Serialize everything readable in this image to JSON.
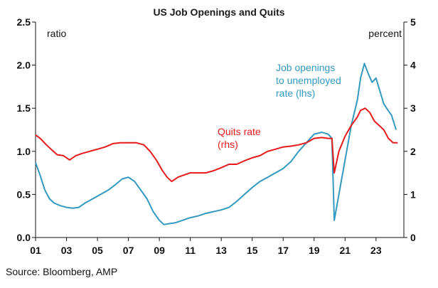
{
  "chart_data": {
    "type": "line",
    "title": "US Job Openings and Quits",
    "left_axis_unit": "ratio",
    "right_axis_unit": "percent",
    "x_ticks": [
      "01",
      "03",
      "05",
      "07",
      "09",
      "11",
      "13",
      "15",
      "17",
      "19",
      "21",
      "23"
    ],
    "y_left_ticks": [
      "0.0",
      "0.5",
      "1.0",
      "1.5",
      "2.0",
      "2.5"
    ],
    "y_right_ticks": [
      "0",
      "1",
      "2",
      "3",
      "4",
      "5"
    ],
    "y_left_range": [
      0,
      2.5
    ],
    "y_right_range": [
      0,
      5
    ],
    "x_range": [
      2001.0,
      2024.8
    ],
    "grid": false,
    "series": [
      {
        "name": "Job openings to unemployed rate (lhs)",
        "axis": "left",
        "color": "#3399bf",
        "x": [
          2001.0,
          2001.3,
          2001.6,
          2001.9,
          2002.2,
          2002.6,
          2003.0,
          2003.4,
          2003.8,
          2004.2,
          2004.7,
          2005.2,
          2005.7,
          2006.2,
          2006.6,
          2007.0,
          2007.4,
          2007.8,
          2008.2,
          2008.6,
          2009.0,
          2009.3,
          2009.6,
          2010.0,
          2010.5,
          2011.0,
          2011.5,
          2012.0,
          2012.5,
          2013.0,
          2013.5,
          2014.0,
          2014.5,
          2015.0,
          2015.5,
          2016.0,
          2016.5,
          2017.0,
          2017.5,
          2018.0,
          2018.5,
          2019.0,
          2019.5,
          2019.9,
          2020.15,
          2020.3,
          2020.6,
          2021.0,
          2021.4,
          2021.8,
          2022.0,
          2022.25,
          2022.5,
          2022.75,
          2023.0,
          2023.25,
          2023.5,
          2023.8,
          2024.0,
          2024.3
        ],
        "values": [
          0.87,
          0.72,
          0.55,
          0.45,
          0.4,
          0.37,
          0.35,
          0.34,
          0.35,
          0.4,
          0.45,
          0.5,
          0.55,
          0.62,
          0.68,
          0.7,
          0.65,
          0.55,
          0.45,
          0.3,
          0.2,
          0.15,
          0.16,
          0.17,
          0.2,
          0.23,
          0.25,
          0.28,
          0.3,
          0.32,
          0.35,
          0.42,
          0.5,
          0.58,
          0.65,
          0.7,
          0.75,
          0.8,
          0.88,
          1.0,
          1.1,
          1.2,
          1.22,
          1.2,
          1.15,
          0.2,
          0.5,
          0.9,
          1.3,
          1.6,
          1.85,
          2.02,
          1.9,
          1.8,
          1.85,
          1.7,
          1.55,
          1.47,
          1.42,
          1.25
        ]
      },
      {
        "name": "Quits rate (rhs)",
        "axis": "right",
        "color": "#e8191b",
        "x": [
          2001.0,
          2001.3,
          2001.7,
          2002.0,
          2002.4,
          2002.8,
          2003.2,
          2003.6,
          2004.0,
          2004.5,
          2005.0,
          2005.5,
          2006.0,
          2006.5,
          2007.0,
          2007.5,
          2008.0,
          2008.4,
          2008.8,
          2009.2,
          2009.5,
          2009.8,
          2010.2,
          2010.6,
          2011.0,
          2011.5,
          2012.0,
          2012.5,
          2013.0,
          2013.5,
          2014.0,
          2014.5,
          2015.0,
          2015.5,
          2016.0,
          2016.5,
          2017.0,
          2017.5,
          2018.0,
          2018.5,
          2019.0,
          2019.5,
          2019.9,
          2020.15,
          2020.3,
          2020.6,
          2021.0,
          2021.4,
          2021.8,
          2022.0,
          2022.3,
          2022.6,
          2022.9,
          2023.2,
          2023.5,
          2023.8,
          2024.1,
          2024.4
        ],
        "values": [
          2.38,
          2.3,
          2.15,
          2.05,
          1.92,
          1.9,
          1.8,
          1.9,
          1.95,
          2.0,
          2.05,
          2.1,
          2.18,
          2.2,
          2.2,
          2.2,
          2.15,
          2.0,
          1.8,
          1.55,
          1.4,
          1.3,
          1.4,
          1.45,
          1.5,
          1.5,
          1.5,
          1.55,
          1.62,
          1.7,
          1.7,
          1.78,
          1.85,
          1.9,
          2.0,
          2.05,
          2.1,
          2.12,
          2.15,
          2.2,
          2.3,
          2.32,
          2.3,
          2.3,
          1.5,
          2.0,
          2.35,
          2.6,
          2.8,
          2.95,
          3.0,
          2.9,
          2.7,
          2.6,
          2.5,
          2.3,
          2.2,
          2.2
        ]
      }
    ],
    "annotations": [
      {
        "lines": [
          "Job openings",
          "to unemployed",
          "rate (lhs)"
        ],
        "color": "#3399bf",
        "anchor": "top-right"
      },
      {
        "lines": [
          "Quits rate",
          "(rhs)"
        ],
        "color": "#e8191b",
        "anchor": "center"
      }
    ]
  },
  "source": "Source: Bloomberg, AMP"
}
